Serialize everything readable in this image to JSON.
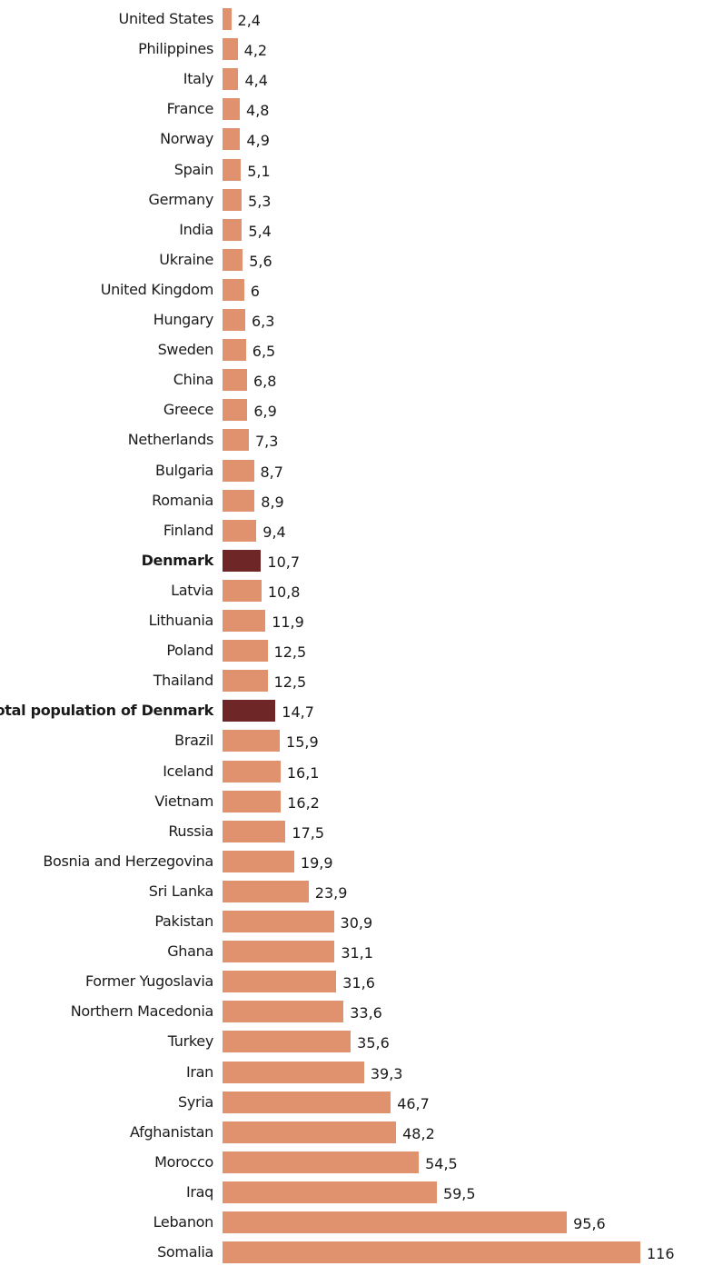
{
  "chart_data": {
    "type": "bar",
    "orientation": "horizontal",
    "title": "",
    "xlabel": "",
    "ylabel": "",
    "xlim": [
      0,
      116
    ],
    "grid": false,
    "colors": {
      "default": "#E0926E",
      "highlight": "#6E2626"
    },
    "decimal_separator": ",",
    "categories": [
      "United States",
      "Philippines",
      "Italy",
      "France",
      "Norway",
      "Spain",
      "Germany",
      "India",
      "Ukraine",
      "United Kingdom",
      "Hungary",
      "Sweden",
      "China",
      "Greece",
      "Netherlands",
      "Bulgaria",
      "Romania",
      "Finland",
      "Denmark",
      "Latvia",
      "Lithuania",
      "Poland",
      "Thailand",
      "Total population of Denmark",
      "Brazil",
      "Iceland",
      "Vietnam",
      "Russia",
      "Bosnia and Herzegovina",
      "Sri Lanka",
      "Pakistan",
      "Ghana",
      "Former Yugoslavia",
      "Northern Macedonia",
      "Turkey",
      "Iran",
      "Syria",
      "Afghanistan",
      "Morocco",
      "Iraq",
      "Lebanon",
      "Somalia"
    ],
    "values": [
      2.4,
      4.2,
      4.4,
      4.8,
      4.9,
      5.1,
      5.3,
      5.4,
      5.6,
      6,
      6.3,
      6.5,
      6.8,
      6.9,
      7.3,
      8.7,
      8.9,
      9.4,
      10.7,
      10.8,
      11.9,
      12.5,
      12.5,
      14.7,
      15.9,
      16.1,
      16.2,
      17.5,
      19.9,
      23.9,
      30.9,
      31.1,
      31.6,
      33.6,
      35.6,
      39.3,
      46.7,
      48.2,
      54.5,
      59.5,
      95.6,
      116
    ],
    "value_labels": [
      "2,4",
      "4,2",
      "4,4",
      "4,8",
      "4,9",
      "5,1",
      "5,3",
      "5,4",
      "5,6",
      "6",
      "6,3",
      "6,5",
      "6,8",
      "6,9",
      "7,3",
      "8,7",
      "8,9",
      "9,4",
      "10,7",
      "10,8",
      "11,9",
      "12,5",
      "12,5",
      "14,7",
      "15,9",
      "16,1",
      "16,2",
      "17,5",
      "19,9",
      "23,9",
      "30,9",
      "31,1",
      "31,6",
      "33,6",
      "35,6",
      "39,3",
      "46,7",
      "48,2",
      "54,5",
      "59,5",
      "95,6",
      "116"
    ],
    "highlighted": [
      "Denmark",
      "Total population of Denmark"
    ]
  }
}
